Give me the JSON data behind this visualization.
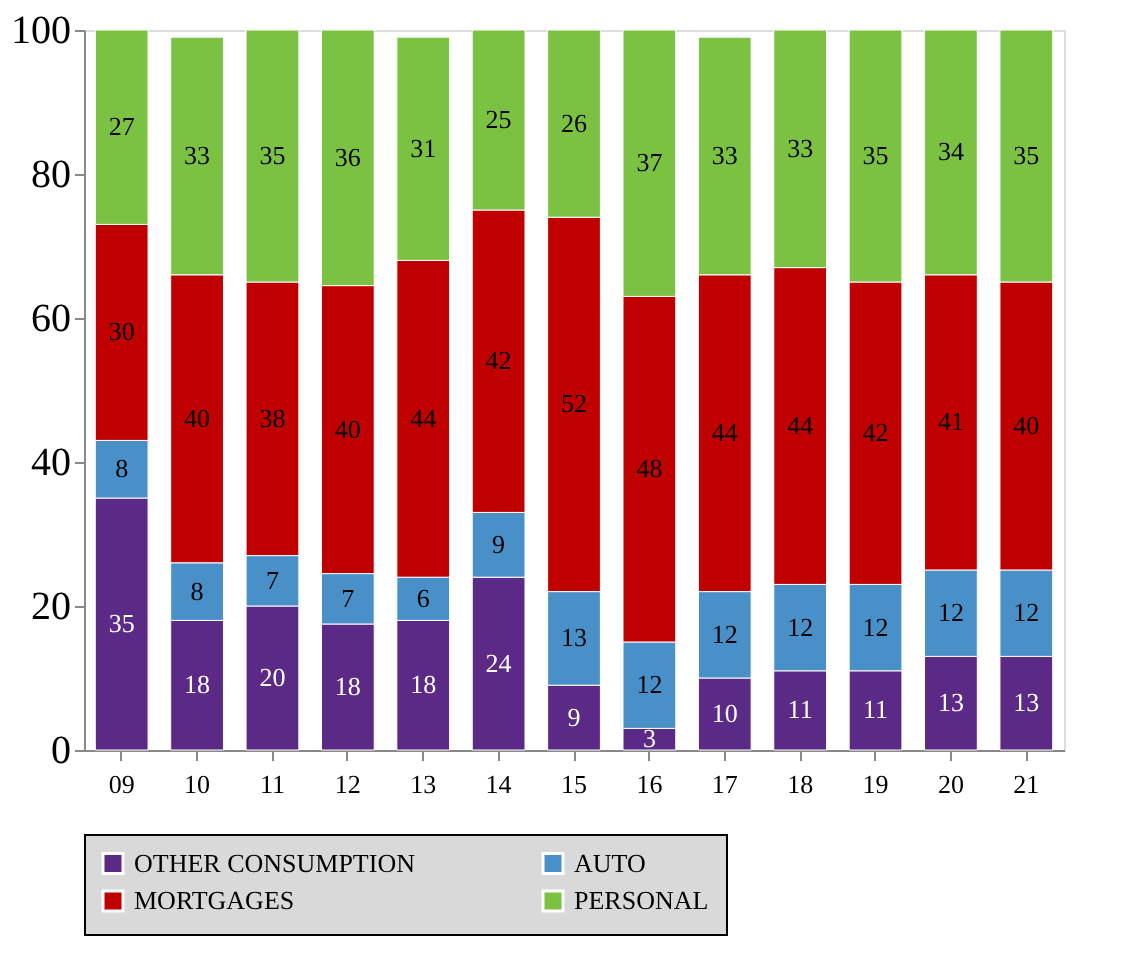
{
  "chart_data": {
    "type": "bar",
    "stacked": true,
    "categories": [
      "09",
      "10",
      "11",
      "12",
      "13",
      "14",
      "15",
      "16",
      "17",
      "18",
      "19",
      "20",
      "21"
    ],
    "series": [
      {
        "name": "OTHER CONSUMPTION",
        "color": "#5b2a86",
        "values": [
          35,
          18,
          20,
          17.5,
          18,
          24,
          9,
          3,
          10,
          11,
          11,
          13,
          13
        ],
        "value_labels": [
          "35",
          "18",
          "20",
          "18",
          "18",
          "24",
          "9",
          "3",
          "10",
          "11",
          "11",
          "13",
          "13"
        ]
      },
      {
        "name": "AUTO",
        "color": "#4a90c8",
        "values": [
          8,
          8,
          7,
          7,
          6,
          9,
          13,
          12,
          12,
          12,
          12,
          12,
          12
        ]
      },
      {
        "name": "MORTGAGES",
        "color": "#c00000",
        "values": [
          30,
          40,
          38,
          40,
          44,
          42,
          52,
          48,
          44,
          44,
          42,
          41,
          40
        ]
      },
      {
        "name": "PERSONAL",
        "color": "#7cc242",
        "values": [
          27,
          33,
          35,
          35.5,
          31,
          25,
          26,
          37,
          33,
          33,
          35,
          34,
          35
        ],
        "value_labels": [
          "27",
          "33",
          "35",
          "36",
          "31",
          "25",
          "26",
          "37",
          "33",
          "33",
          "35",
          "34",
          "35"
        ]
      }
    ],
    "ylim": [
      0,
      100
    ],
    "yticks": [
      0,
      20,
      40,
      60,
      80,
      100
    ],
    "grid": false,
    "legend": "bottom",
    "data_labels": true
  }
}
